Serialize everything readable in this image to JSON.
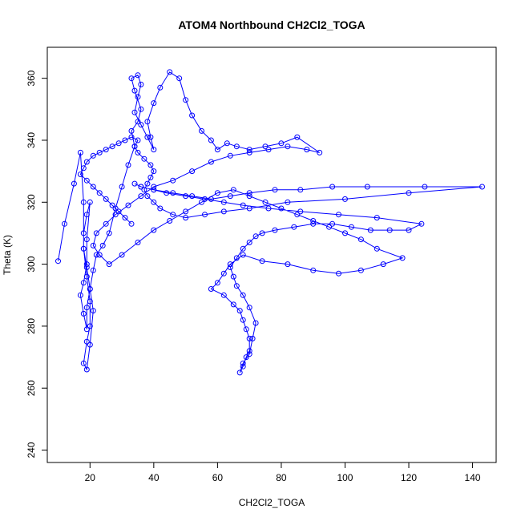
{
  "chart_data": {
    "type": "line",
    "title": "ATOM4 Northbound CH2Cl2_TOGA",
    "xlabel": "CH2Cl2_TOGA",
    "ylabel": "Theta (K)",
    "xlim": [
      6.6,
      147.4
    ],
    "ylim": [
      236,
      370
    ],
    "xticks": [
      20,
      40,
      60,
      80,
      100,
      120,
      140
    ],
    "yticks": [
      240,
      260,
      280,
      300,
      320,
      340,
      360
    ],
    "grid": false,
    "legend": "none",
    "series": [
      {
        "marker": "open-circle",
        "line": true,
        "color": "#0000ff",
        "x": [
          10,
          12,
          15,
          17,
          18,
          18,
          19,
          20,
          20,
          19,
          18,
          19,
          20,
          21,
          20,
          19,
          18,
          18,
          19,
          20,
          19,
          19,
          18,
          17,
          18,
          19,
          19,
          20,
          21,
          22,
          24,
          26,
          28,
          30,
          32,
          34,
          33,
          35,
          36,
          34,
          33,
          35,
          36,
          35,
          34,
          36,
          38,
          40,
          39,
          38,
          40,
          42,
          45,
          48,
          50,
          52,
          55,
          58,
          60,
          63,
          66,
          70,
          75,
          80,
          85,
          92,
          88,
          82,
          76,
          70,
          64,
          58,
          52,
          46,
          40,
          36,
          32,
          28,
          25,
          22,
          21,
          23,
          26,
          30,
          35,
          40,
          45,
          50,
          55,
          60,
          65,
          70,
          75,
          80,
          85,
          90,
          95,
          100,
          105,
          110,
          118,
          112,
          105,
          98,
          90,
          82,
          74,
          68,
          64,
          62,
          60,
          58,
          62,
          65,
          67,
          68,
          69,
          70,
          70,
          69,
          68,
          67,
          68,
          70,
          71,
          72,
          70,
          68,
          66,
          65,
          64,
          66,
          68,
          70,
          72,
          74,
          78,
          84,
          90,
          96,
          102,
          108,
          114,
          120,
          124,
          110,
          98,
          86,
          76,
          68,
          62,
          56,
          50,
          44,
          40,
          36,
          34,
          36,
          40,
          46,
          52,
          58,
          64,
          70,
          78,
          86,
          96,
          107,
          125,
          143,
          120,
          100,
          82,
          70,
          62,
          56,
          50,
          46,
          42,
          40,
          38,
          37,
          38,
          39,
          40,
          39,
          37,
          35,
          34,
          35,
          33,
          31,
          29,
          27,
          25,
          23,
          21,
          19,
          18,
          17,
          19,
          21,
          23,
          25,
          27,
          29,
          31,
          33
        ],
        "y": [
          301,
          313,
          326,
          336,
          320,
          305,
          296,
          288,
          280,
          275,
          268,
          266,
          274,
          285,
          292,
          299,
          305,
          310,
          316,
          320,
          308,
          300,
          294,
          290,
          284,
          279,
          286,
          292,
          298,
          303,
          306,
          310,
          318,
          325,
          332,
          338,
          343,
          346,
          350,
          356,
          360,
          361,
          358,
          354,
          349,
          345,
          341,
          337,
          341,
          346,
          352,
          357,
          362,
          360,
          353,
          348,
          343,
          340,
          337,
          339,
          338,
          337,
          338,
          339,
          341,
          336,
          337,
          338,
          337,
          336,
          335,
          333,
          330,
          327,
          325,
          322,
          319,
          316,
          313,
          310,
          306,
          303,
          300,
          303,
          307,
          311,
          314,
          317,
          320,
          323,
          324,
          322,
          320,
          318,
          316,
          314,
          312,
          310,
          308,
          305,
          302,
          300,
          298,
          297,
          298,
          300,
          301,
          303,
          300,
          297,
          294,
          292,
          290,
          287,
          285,
          282,
          279,
          276,
          272,
          270,
          267,
          265,
          268,
          271,
          276,
          281,
          286,
          290,
          293,
          296,
          299,
          302,
          305,
          307,
          309,
          310,
          311,
          312,
          313,
          313,
          312,
          311,
          311,
          311,
          313,
          315,
          316,
          317,
          318,
          319,
          320,
          321,
          322,
          323,
          324,
          325,
          326,
          325,
          324,
          323,
          322,
          321,
          322,
          323,
          324,
          324,
          325,
          325,
          325,
          325,
          323,
          321,
          320,
          318,
          317,
          316,
          315,
          316,
          318,
          320,
          322,
          324,
          326,
          328,
          330,
          332,
          334,
          336,
          338,
          340,
          341,
          340,
          339,
          338,
          337,
          336,
          335,
          333,
          331,
          329,
          327,
          325,
          323,
          321,
          319,
          317,
          315,
          313
        ]
      }
    ]
  }
}
